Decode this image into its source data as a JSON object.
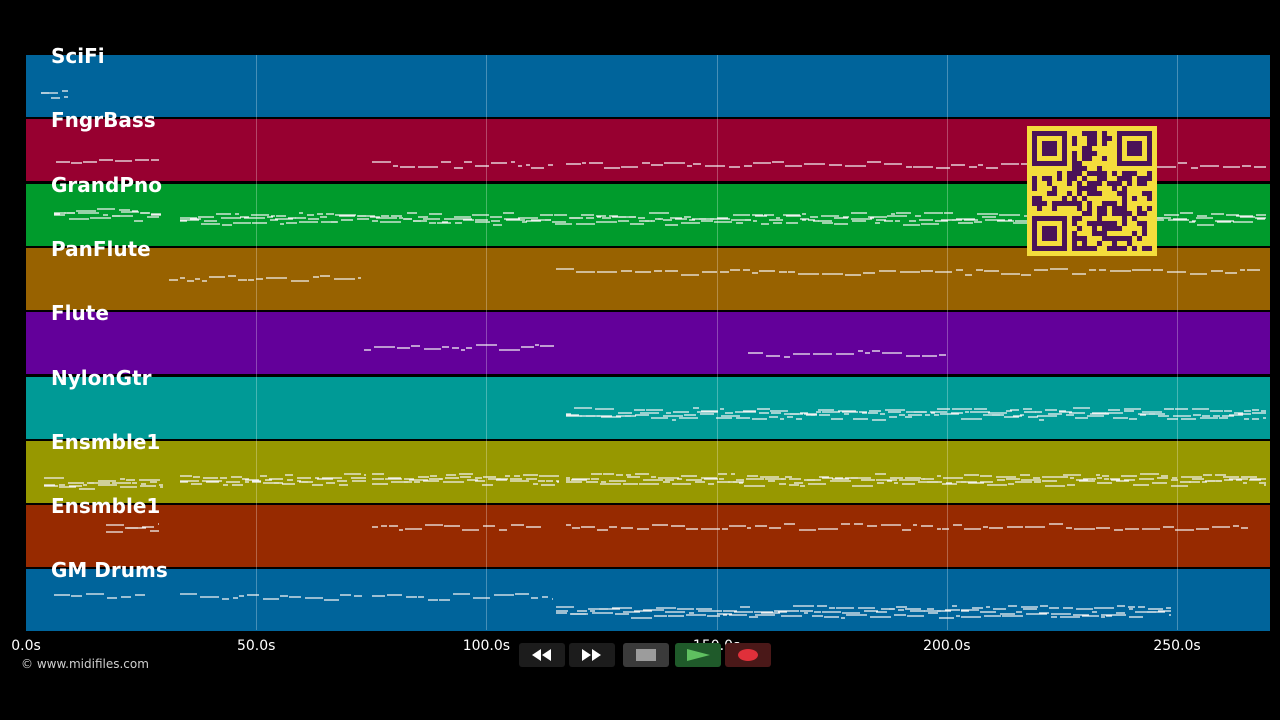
{
  "tracks": [
    {
      "name": "SciFi",
      "color": "#00649b"
    },
    {
      "name": "FngrBass",
      "color": "#970030"
    },
    {
      "name": "GrandPno",
      "color": "#009b2c"
    },
    {
      "name": "PanFlute",
      "color": "#986200"
    },
    {
      "name": "Flute",
      "color": "#63009a"
    },
    {
      "name": "NylonGtr",
      "color": "#009a96"
    },
    {
      "name": "Ensmble1",
      "color": "#979800"
    },
    {
      "name": "Ensmble1",
      "color": "#972a00"
    },
    {
      "name": "GM Drums",
      "color": "#00649b"
    }
  ],
  "timeline": {
    "ticks": [
      "0.0s",
      "50.0s",
      "100.0s",
      "150.0s",
      "200.0s",
      "250.0s"
    ]
  },
  "copyright": "© www.midifiles.com",
  "transport": {
    "buttons": [
      {
        "name": "rewind-button",
        "icon": "rewind-icon"
      },
      {
        "name": "fast-forward-button",
        "icon": "fast-forward-icon"
      },
      {
        "name": "stop-button",
        "icon": "stop-icon"
      },
      {
        "name": "play-button",
        "icon": "play-icon"
      },
      {
        "name": "record-button",
        "icon": "record-icon"
      }
    ]
  },
  "qr_code": {
    "icon": "qr-code-icon",
    "color": "#4a1358",
    "background": "#f4dd3c"
  }
}
